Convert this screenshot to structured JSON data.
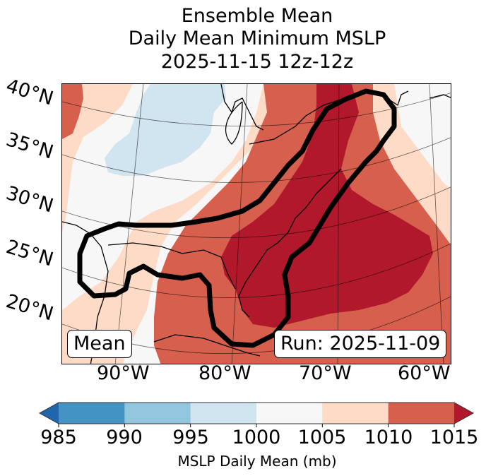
{
  "title": {
    "line1": "Ensemble Mean",
    "line2": "Daily Mean Minimum MSLP",
    "line3": "2025-11-15 12z-12z"
  },
  "map": {
    "lat_labels": [
      "40°N",
      "35°N",
      "30°N",
      "25°N",
      "20°N"
    ],
    "lon_labels": [
      "90°W",
      "80°W",
      "70°W",
      "60°W"
    ],
    "annotation_left": "Mean",
    "annotation_right": "Run: 2025-11-09",
    "contour_color": "#000000",
    "region": "Eastern United States, Gulf of Mexico and Western Atlantic"
  },
  "colorbar": {
    "label": "MSLP Daily Mean (mb)",
    "ticks": [
      "985",
      "990",
      "995",
      "1000",
      "1005",
      "1010",
      "1015"
    ],
    "extend": "both",
    "bins": [
      {
        "range": "<985",
        "color": "#2166ac"
      },
      {
        "range": "985-990",
        "color": "#4393c3"
      },
      {
        "range": "990-995",
        "color": "#92c5de"
      },
      {
        "range": "995-1000",
        "color": "#d1e5f0"
      },
      {
        "range": "1000-1005",
        "color": "#f7f7f7"
      },
      {
        "range": "1005-1010",
        "color": "#fddbc7"
      },
      {
        "range": "1010-1015",
        "color": "#d6604d"
      },
      {
        "range": ">1015",
        "color": "#b2182b"
      }
    ]
  }
}
